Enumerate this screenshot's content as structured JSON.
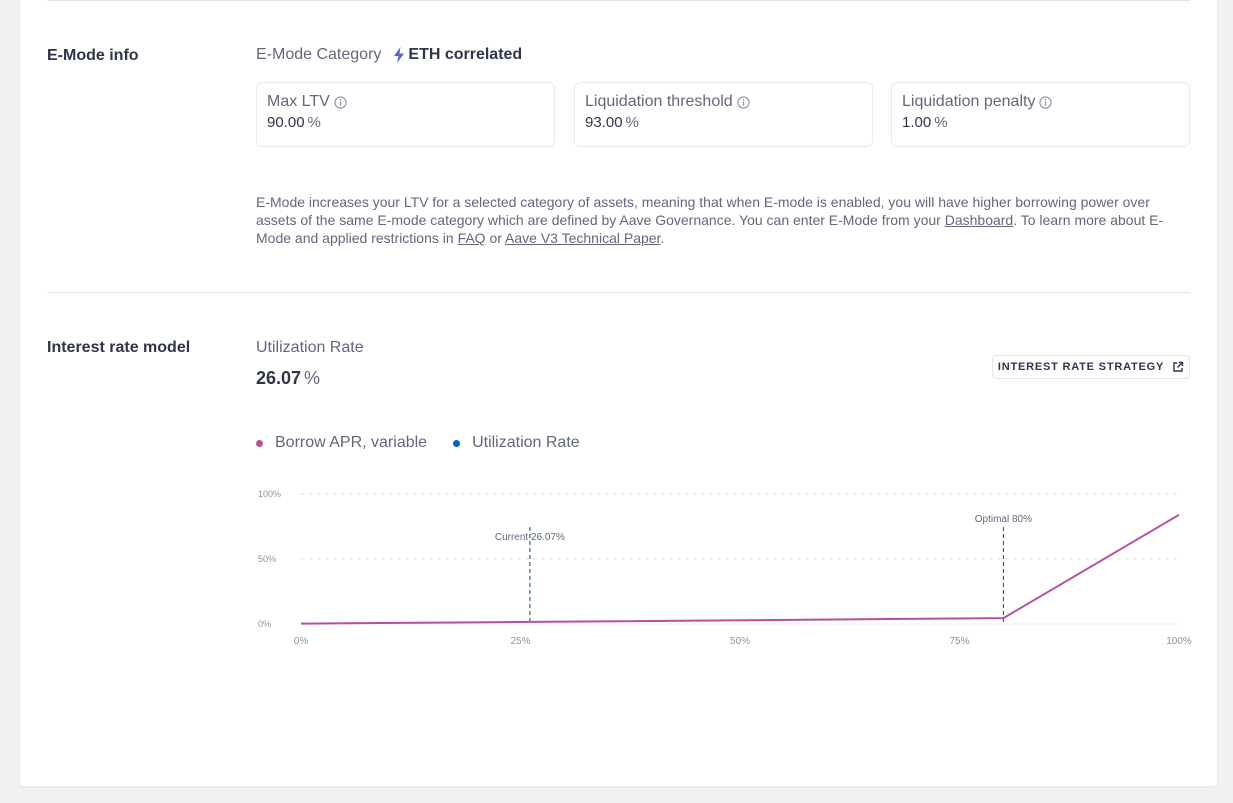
{
  "emode": {
    "section_title": "E-Mode info",
    "category_label": "E-Mode Category",
    "category_value": "ETH correlated",
    "stats": [
      {
        "title": "Max LTV",
        "value": "90.00",
        "unit": "%"
      },
      {
        "title": "Liquidation threshold",
        "value": "93.00",
        "unit": "%"
      },
      {
        "title": "Liquidation penalty",
        "value": "1.00",
        "unit": "%"
      }
    ],
    "description_parts": {
      "p1": "E-Mode increases your LTV for a selected category of assets, meaning that when E-mode is enabled, you will have higher borrowing power over assets of the same E-mode category which are defined by Aave Governance. You can enter E-Mode from your ",
      "link_dashboard": "Dashboard",
      "p2": ". To learn more about E-Mode and applied restrictions in ",
      "link_faq": "FAQ",
      "p3": " or ",
      "link_paper": "Aave V3 Technical Paper",
      "p4": "."
    }
  },
  "interest": {
    "section_title": "Interest rate model",
    "utilization_label": "Utilization Rate",
    "utilization_value": "26.07",
    "utilization_unit": "%",
    "strategy_button": "INTEREST RATE STRATEGY"
  },
  "colors": {
    "borrow": "#b6509e",
    "utilization": "#0062d2",
    "marker": "#0b4b6b"
  },
  "icons": {
    "bolt": "lightning-bolt-icon",
    "info": "info-circle-icon",
    "external": "external-link-icon"
  },
  "chart_data": {
    "type": "line",
    "series": [
      {
        "name": "Borrow APR, variable",
        "x": [
          0,
          26.07,
          80,
          100
        ],
        "y": [
          0.3,
          1.6,
          4.5,
          84
        ]
      },
      {
        "name": "Utilization Rate",
        "x": [],
        "y": []
      }
    ],
    "xlim": [
      0,
      100
    ],
    "ylim": [
      0,
      100
    ],
    "x_ticks": [
      "0%",
      "25%",
      "50%",
      "75%",
      "100%"
    ],
    "y_ticks": [
      "0%",
      "50%",
      "100%"
    ],
    "annotations": [
      {
        "label": "Current 26.07%",
        "x": 26.07
      },
      {
        "label": "Optimal 80%",
        "x": 80
      }
    ],
    "grid": true,
    "legend_position": "top-left"
  }
}
